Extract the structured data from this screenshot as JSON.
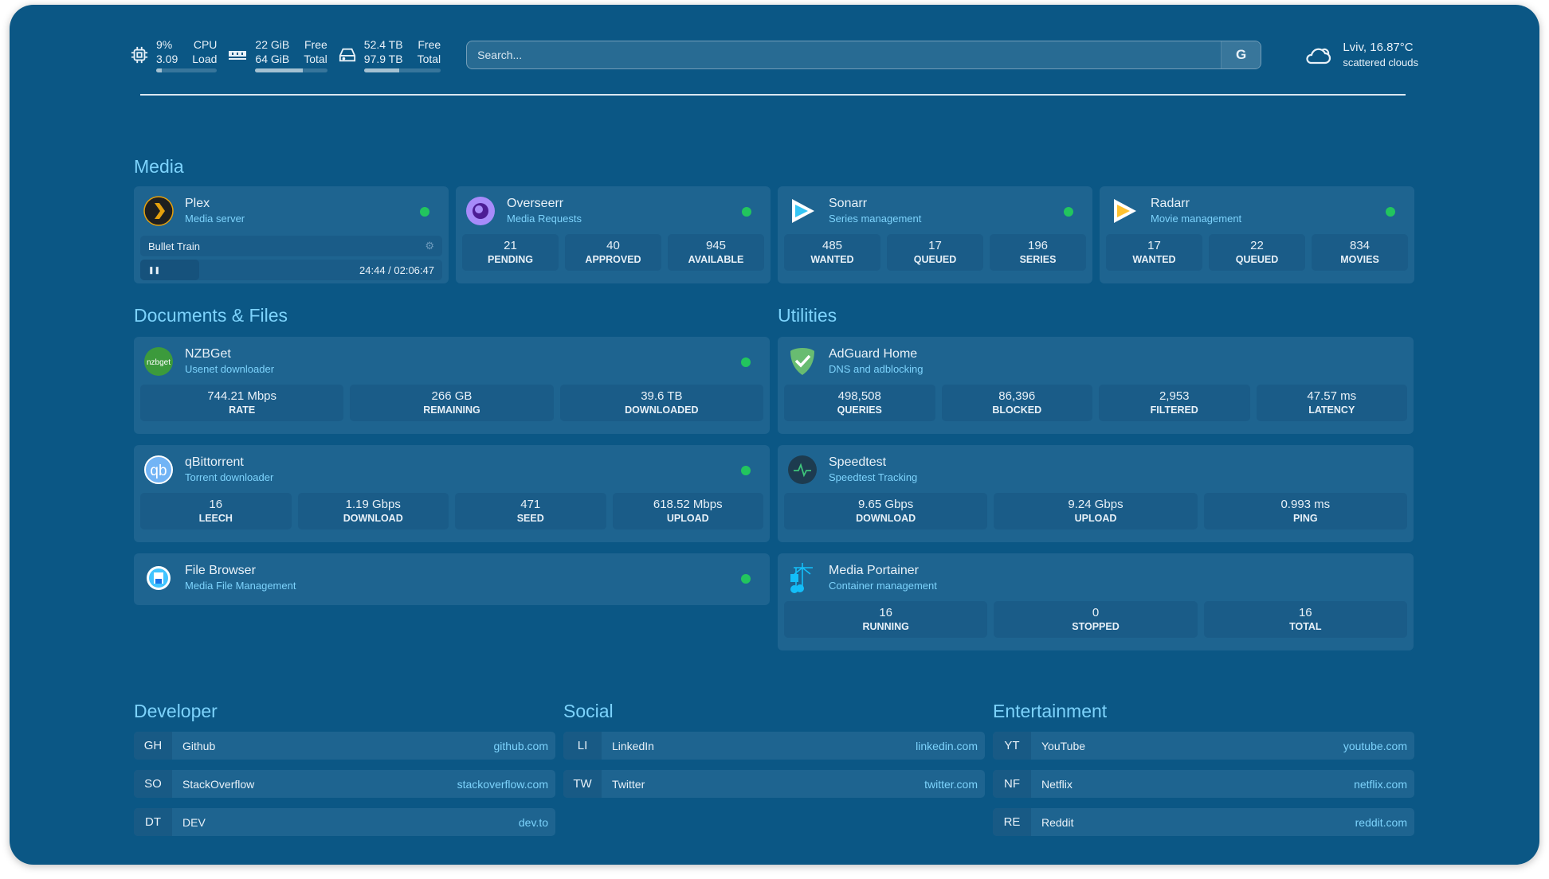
{
  "colors": {
    "background": "#0b5785",
    "card": "#1e6490",
    "accent": "#7dd3fc",
    "status_up": "#22c55e"
  },
  "header": {
    "cpu": {
      "icon": "cpu-icon",
      "value": "9%",
      "value_label": "CPU",
      "load": "3.09",
      "load_label": "Load",
      "usage_percent": 9
    },
    "memory": {
      "icon": "memory-icon",
      "free": "22 GiB",
      "free_label": "Free",
      "total": "64 GiB",
      "total_label": "Total",
      "usage_percent": 66
    },
    "disk": {
      "icon": "disk-icon",
      "free": "52.4 TB",
      "free_label": "Free",
      "total": "97.9 TB",
      "total_label": "Total",
      "usage_percent": 46
    },
    "search": {
      "placeholder": "Search...",
      "provider_button": "G"
    },
    "weather": {
      "icon": "cloud-icon",
      "location": "Lviv, 16.87°C",
      "condition": "scattered clouds"
    }
  },
  "sections": {
    "media": "Media",
    "documents": "Documents & Files",
    "utilities": "Utilities",
    "developer": "Developer",
    "social": "Social",
    "entertainment": "Entertainment"
  },
  "services": [
    {
      "id": "plex",
      "name": "Plex",
      "subtitle": "Media server",
      "icon": "plex-icon",
      "status": "up",
      "now_playing": {
        "title": "Bullet Train",
        "time": "24:44 / 02:06:47",
        "progress_percent": 20
      }
    },
    {
      "id": "overseerr",
      "name": "Overseerr",
      "subtitle": "Media Requests",
      "icon": "overseerr-icon",
      "status": "up",
      "stats": [
        {
          "v": "21",
          "l": "PENDING"
        },
        {
          "v": "40",
          "l": "APPROVED"
        },
        {
          "v": "945",
          "l": "AVAILABLE"
        }
      ]
    },
    {
      "id": "sonarr",
      "name": "Sonarr",
      "subtitle": "Series management",
      "icon": "sonarr-icon",
      "status": "up",
      "stats": [
        {
          "v": "485",
          "l": "WANTED"
        },
        {
          "v": "17",
          "l": "QUEUED"
        },
        {
          "v": "196",
          "l": "SERIES"
        }
      ]
    },
    {
      "id": "radarr",
      "name": "Radarr",
      "subtitle": "Movie management",
      "icon": "radarr-icon",
      "status": "up",
      "stats": [
        {
          "v": "17",
          "l": "WANTED"
        },
        {
          "v": "22",
          "l": "QUEUED"
        },
        {
          "v": "834",
          "l": "MOVIES"
        }
      ]
    },
    {
      "id": "nzbget",
      "name": "NZBGet",
      "subtitle": "Usenet downloader",
      "icon": "nzbget-icon",
      "status": "up",
      "stats": [
        {
          "v": "744.21 Mbps",
          "l": "RATE"
        },
        {
          "v": "266 GB",
          "l": "REMAINING"
        },
        {
          "v": "39.6 TB",
          "l": "DOWNLOADED"
        }
      ]
    },
    {
      "id": "qbittorrent",
      "name": "qBittorrent",
      "subtitle": "Torrent downloader",
      "icon": "qbittorrent-icon",
      "status": "up",
      "stats": [
        {
          "v": "16",
          "l": "LEECH"
        },
        {
          "v": "1.19 Gbps",
          "l": "DOWNLOAD"
        },
        {
          "v": "471",
          "l": "SEED"
        },
        {
          "v": "618.52 Mbps",
          "l": "UPLOAD"
        }
      ]
    },
    {
      "id": "filebrowser",
      "name": "File Browser",
      "subtitle": "Media File Management",
      "icon": "file-browser-icon",
      "status": "up",
      "stats": []
    },
    {
      "id": "adguard",
      "name": "AdGuard Home",
      "subtitle": "DNS and adblocking",
      "icon": "adguard-icon",
      "stats": [
        {
          "v": "498,508",
          "l": "QUERIES"
        },
        {
          "v": "86,396",
          "l": "BLOCKED"
        },
        {
          "v": "2,953",
          "l": "FILTERED"
        },
        {
          "v": "47.57 ms",
          "l": "LATENCY"
        }
      ]
    },
    {
      "id": "speedtest",
      "name": "Speedtest",
      "subtitle": "Speedtest Tracking",
      "icon": "speedtest-icon",
      "stats": [
        {
          "v": "9.65 Gbps",
          "l": "DOWNLOAD"
        },
        {
          "v": "9.24 Gbps",
          "l": "UPLOAD"
        },
        {
          "v": "0.993 ms",
          "l": "PING"
        }
      ]
    },
    {
      "id": "portainer",
      "name": "Media Portainer",
      "subtitle": "Container management",
      "icon": "portainer-icon",
      "stats": [
        {
          "v": "16",
          "l": "RUNNING"
        },
        {
          "v": "0",
          "l": "STOPPED"
        },
        {
          "v": "16",
          "l": "TOTAL"
        }
      ]
    }
  ],
  "bookmarks": [
    [
      {
        "ab": "GH",
        "name": "Github",
        "url": "github.com"
      },
      {
        "ab": "SO",
        "name": "StackOverflow",
        "url": "stackoverflow.com"
      },
      {
        "ab": "DT",
        "name": "DEV",
        "url": "dev.to"
      }
    ],
    [
      {
        "ab": "LI",
        "name": "LinkedIn",
        "url": "linkedin.com"
      },
      {
        "ab": "TW",
        "name": "Twitter",
        "url": "twitter.com"
      }
    ],
    [
      {
        "ab": "YT",
        "name": "YouTube",
        "url": "youtube.com"
      },
      {
        "ab": "NF",
        "name": "Netflix",
        "url": "netflix.com"
      },
      {
        "ab": "RE",
        "name": "Reddit",
        "url": "reddit.com"
      }
    ]
  ]
}
